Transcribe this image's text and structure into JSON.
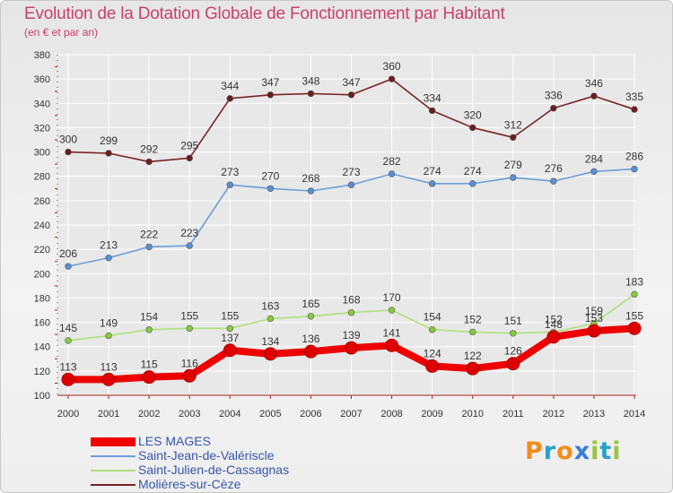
{
  "title": "Evolution de la Dotation Globale de Fonctionnement par Habitant",
  "subtitle": "(en € et par an)",
  "logo_text": "Proxiti",
  "colors": {
    "title": "#c8416a",
    "legend_text": "#3557a8",
    "grid": "#ffffff",
    "axis": "#aa2222",
    "logo_letters": [
      "#f28c1a",
      "#2aa0c8",
      "#f28c1a",
      "#3a7fd1",
      "#9bc43c",
      "#2aa0c8",
      "#9bc43c"
    ]
  },
  "chart_data": {
    "type": "line",
    "title": "Evolution de la Dotation Globale de Fonctionnement par Habitant",
    "subtitle": "(en € et par an)",
    "xlabel": "",
    "ylabel": "",
    "grid": true,
    "legend_position": "bottom-left",
    "x": [
      "2000",
      "2001",
      "2002",
      "2003",
      "2004",
      "2005",
      "2006",
      "2007",
      "2008",
      "2009",
      "2010",
      "2011",
      "2012",
      "2013",
      "2014"
    ],
    "ylim": [
      100,
      380
    ],
    "yticks": [
      100,
      120,
      140,
      160,
      180,
      200,
      220,
      240,
      260,
      280,
      300,
      320,
      340,
      360,
      380
    ],
    "series": [
      {
        "name": "LES MAGES",
        "color": "#ee0000",
        "point_color": "#dd0000",
        "width": 8,
        "marker": 7,
        "values": [
          113,
          113,
          115,
          116,
          137,
          134,
          136,
          139,
          141,
          124,
          122,
          126,
          148,
          153,
          155
        ]
      },
      {
        "name": "Saint-Jean-de-Valériscle",
        "color": "#6d9ed8",
        "point_color": "#5b8fd3",
        "width": 1.6,
        "marker": 3.4,
        "values": [
          206,
          213,
          222,
          223,
          273,
          270,
          268,
          273,
          282,
          274,
          274,
          279,
          276,
          284,
          286
        ]
      },
      {
        "name": "Saint-Julien-de-Cassagnas",
        "color": "#aee07a",
        "point_color": "#85cc3d",
        "width": 1.6,
        "marker": 3.4,
        "values": [
          145,
          149,
          154,
          155,
          155,
          163,
          165,
          168,
          170,
          154,
          152,
          151,
          152,
          159,
          183
        ]
      },
      {
        "name": "Molières-sur-Cèze",
        "color": "#7a2424",
        "point_color": "#6a1e1e",
        "width": 1.6,
        "marker": 3.4,
        "values": [
          300,
          299,
          292,
          295,
          344,
          347,
          348,
          347,
          360,
          334,
          320,
          312,
          336,
          346,
          335
        ]
      }
    ]
  }
}
